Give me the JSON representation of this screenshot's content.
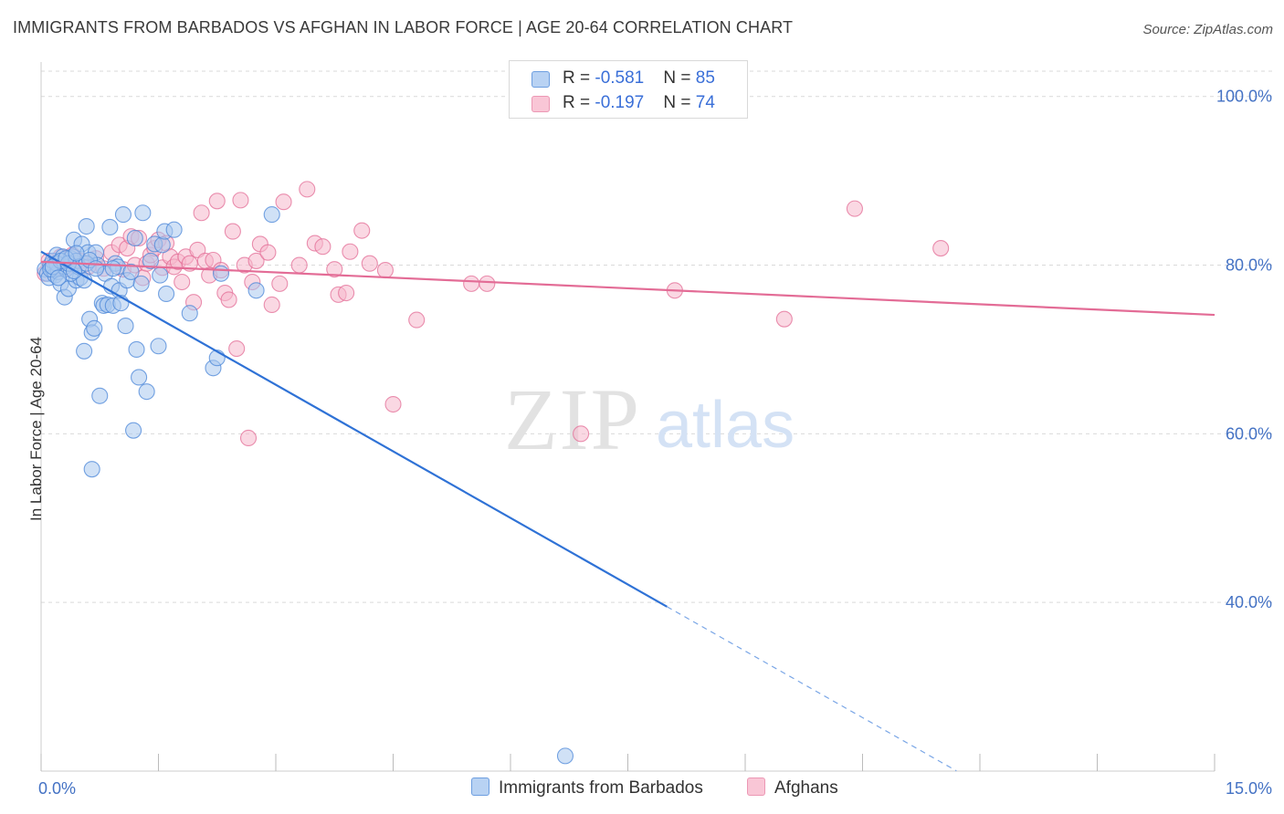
{
  "title": "IMMIGRANTS FROM BARBADOS VS AFGHAN IN LABOR FORCE | AGE 20-64 CORRELATION CHART",
  "source": "Source: ZipAtlas.com",
  "watermark": {
    "zip": "ZIP",
    "atlas": "atlas"
  },
  "colors": {
    "blue": "#4a86d8",
    "blue_fill": "#a9c8ef",
    "pink": "#e36c96",
    "pink_fill": "#f6b8cc",
    "tick": "#4472c4",
    "grid": "#d9d9d9"
  },
  "legend": {
    "series": [
      {
        "name": "Immigrants from Barbados",
        "r_label": "R = ",
        "r": "-0.581",
        "n_label": "N = ",
        "n": "85"
      },
      {
        "name": "Afghans",
        "r_label": "R = ",
        "r": "-0.197",
        "n_label": "N = ",
        "n": "74"
      }
    ]
  },
  "chart_data": {
    "type": "scatter",
    "title": "IMMIGRANTS FROM BARBADOS VS AFGHAN IN LABOR FORCE | AGE 20-64 CORRELATION CHART",
    "xlabel": "",
    "ylabel": "In Labor Force | Age 20-64",
    "xlim": [
      0,
      15
    ],
    "ylim": [
      20,
      103
    ],
    "x_tick_labels": [
      "0.0%",
      "15.0%"
    ],
    "y_ticks": [
      40,
      60,
      80,
      100
    ],
    "y_tick_labels": [
      "40.0%",
      "60.0%",
      "80.0%",
      "100.0%"
    ],
    "grid": true,
    "legend_position": "top-center",
    "series": [
      {
        "name": "Immigrants from Barbados",
        "color": "#4a86d8",
        "trend": {
          "x0": 0,
          "y0": 81.6,
          "x1": 8.0,
          "y1": 39.5,
          "dashed_to_x": 11.7
        },
        "points": [
          [
            0.05,
            79.5
          ],
          [
            0.08,
            79
          ],
          [
            0.1,
            78.5
          ],
          [
            0.12,
            80
          ],
          [
            0.15,
            79.5
          ],
          [
            0.15,
            80.5
          ],
          [
            0.18,
            78.8
          ],
          [
            0.2,
            81.2
          ],
          [
            0.22,
            79.2
          ],
          [
            0.25,
            77.8
          ],
          [
            0.28,
            81
          ],
          [
            0.3,
            76.2
          ],
          [
            0.32,
            79.5
          ],
          [
            0.35,
            77.2
          ],
          [
            0.38,
            80.8
          ],
          [
            0.4,
            81
          ],
          [
            0.42,
            83
          ],
          [
            0.45,
            80.5
          ],
          [
            0.45,
            78.2
          ],
          [
            0.5,
            78.5
          ],
          [
            0.52,
            82.5
          ],
          [
            0.55,
            78.2
          ],
          [
            0.58,
            84.6
          ],
          [
            0.6,
            81.5
          ],
          [
            0.62,
            73.6
          ],
          [
            0.65,
            72
          ],
          [
            0.68,
            72.5
          ],
          [
            0.7,
            81.5
          ],
          [
            0.72,
            80
          ],
          [
            0.75,
            64.5
          ],
          [
            0.78,
            75.5
          ],
          [
            0.8,
            75.2
          ],
          [
            0.82,
            79
          ],
          [
            0.85,
            75.3
          ],
          [
            0.88,
            84.5
          ],
          [
            0.9,
            77.5
          ],
          [
            0.92,
            75.2
          ],
          [
            0.95,
            80.2
          ],
          [
            0.98,
            79.8
          ],
          [
            1.0,
            77
          ],
          [
            1.02,
            75.5
          ],
          [
            1.05,
            86
          ],
          [
            1.08,
            72.8
          ],
          [
            1.1,
            78.2
          ],
          [
            1.15,
            79.2
          ],
          [
            1.18,
            60.4
          ],
          [
            1.2,
            83.2
          ],
          [
            1.22,
            70
          ],
          [
            1.25,
            66.7
          ],
          [
            1.28,
            77.8
          ],
          [
            1.3,
            86.2
          ],
          [
            1.35,
            65
          ],
          [
            1.4,
            80.5
          ],
          [
            1.45,
            82.5
          ],
          [
            1.5,
            70.4
          ],
          [
            1.52,
            78.8
          ],
          [
            1.55,
            82.4
          ],
          [
            1.58,
            84
          ],
          [
            1.6,
            76.6
          ],
          [
            1.7,
            84.2
          ],
          [
            1.9,
            74.3
          ],
          [
            2.2,
            67.8
          ],
          [
            2.25,
            69
          ],
          [
            2.3,
            79
          ],
          [
            2.75,
            77
          ],
          [
            2.95,
            86
          ],
          [
            0.55,
            69.8
          ],
          [
            0.65,
            55.8
          ],
          [
            0.3,
            79.8
          ],
          [
            0.2,
            80.2
          ],
          [
            0.38,
            79
          ],
          [
            0.48,
            79.8
          ],
          [
            0.58,
            80.2
          ],
          [
            0.12,
            79.5
          ],
          [
            0.25,
            80.5
          ],
          [
            0.35,
            80.2
          ],
          [
            0.42,
            79.3
          ],
          [
            0.62,
            80.6
          ],
          [
            0.7,
            79.6
          ],
          [
            0.92,
            79.6
          ],
          [
            0.15,
            79.8
          ],
          [
            0.22,
            78.5
          ],
          [
            0.32,
            80.8
          ],
          [
            0.45,
            81.4
          ],
          [
            6.7,
            21.8
          ]
        ]
      },
      {
        "name": "Afghans",
        "color": "#e36c96",
        "trend": {
          "x0": 0,
          "y0": 80.4,
          "x1": 15,
          "y1": 74.1
        },
        "points": [
          [
            0.05,
            79
          ],
          [
            0.1,
            80.5
          ],
          [
            0.15,
            80
          ],
          [
            0.2,
            79.8
          ],
          [
            0.25,
            81
          ],
          [
            0.3,
            79.5
          ],
          [
            0.4,
            81.2
          ],
          [
            0.5,
            80.5
          ],
          [
            0.6,
            79.8
          ],
          [
            0.7,
            80.8
          ],
          [
            0.8,
            79.6
          ],
          [
            0.9,
            81.5
          ],
          [
            1.0,
            82.4
          ],
          [
            1.05,
            79.5
          ],
          [
            1.1,
            82
          ],
          [
            1.15,
            83.4
          ],
          [
            1.2,
            80
          ],
          [
            1.25,
            83.2
          ],
          [
            1.3,
            78.5
          ],
          [
            1.35,
            80.2
          ],
          [
            1.4,
            81.2
          ],
          [
            1.45,
            82
          ],
          [
            1.5,
            83
          ],
          [
            1.55,
            79.7
          ],
          [
            1.6,
            82.6
          ],
          [
            1.65,
            81
          ],
          [
            1.7,
            79.8
          ],
          [
            1.75,
            80.4
          ],
          [
            1.8,
            78
          ],
          [
            1.85,
            81
          ],
          [
            1.9,
            80.2
          ],
          [
            1.95,
            75.6
          ],
          [
            2.0,
            81.8
          ],
          [
            2.05,
            86.2
          ],
          [
            2.1,
            80.5
          ],
          [
            2.15,
            78.8
          ],
          [
            2.2,
            80.6
          ],
          [
            2.25,
            87.6
          ],
          [
            2.3,
            79.4
          ],
          [
            2.35,
            76.7
          ],
          [
            2.4,
            75.9
          ],
          [
            2.45,
            84
          ],
          [
            2.5,
            70.1
          ],
          [
            2.55,
            87.7
          ],
          [
            2.6,
            80
          ],
          [
            2.65,
            59.5
          ],
          [
            2.7,
            78
          ],
          [
            2.75,
            80.5
          ],
          [
            2.8,
            82.5
          ],
          [
            2.9,
            81.5
          ],
          [
            2.95,
            75.3
          ],
          [
            3.05,
            77.8
          ],
          [
            3.1,
            87.5
          ],
          [
            3.3,
            80
          ],
          [
            3.4,
            89
          ],
          [
            3.5,
            82.6
          ],
          [
            3.6,
            82.2
          ],
          [
            3.75,
            79.5
          ],
          [
            3.8,
            76.5
          ],
          [
            3.9,
            76.7
          ],
          [
            3.95,
            81.6
          ],
          [
            4.1,
            84.1
          ],
          [
            4.2,
            80.2
          ],
          [
            4.4,
            79.4
          ],
          [
            4.5,
            63.5
          ],
          [
            4.8,
            73.5
          ],
          [
            5.5,
            77.8
          ],
          [
            5.7,
            77.8
          ],
          [
            6.9,
            60
          ],
          [
            8.1,
            77
          ],
          [
            9.5,
            73.6
          ],
          [
            10.4,
            86.7
          ],
          [
            11.5,
            82
          ],
          [
            0.35,
            80.2
          ]
        ]
      }
    ]
  }
}
